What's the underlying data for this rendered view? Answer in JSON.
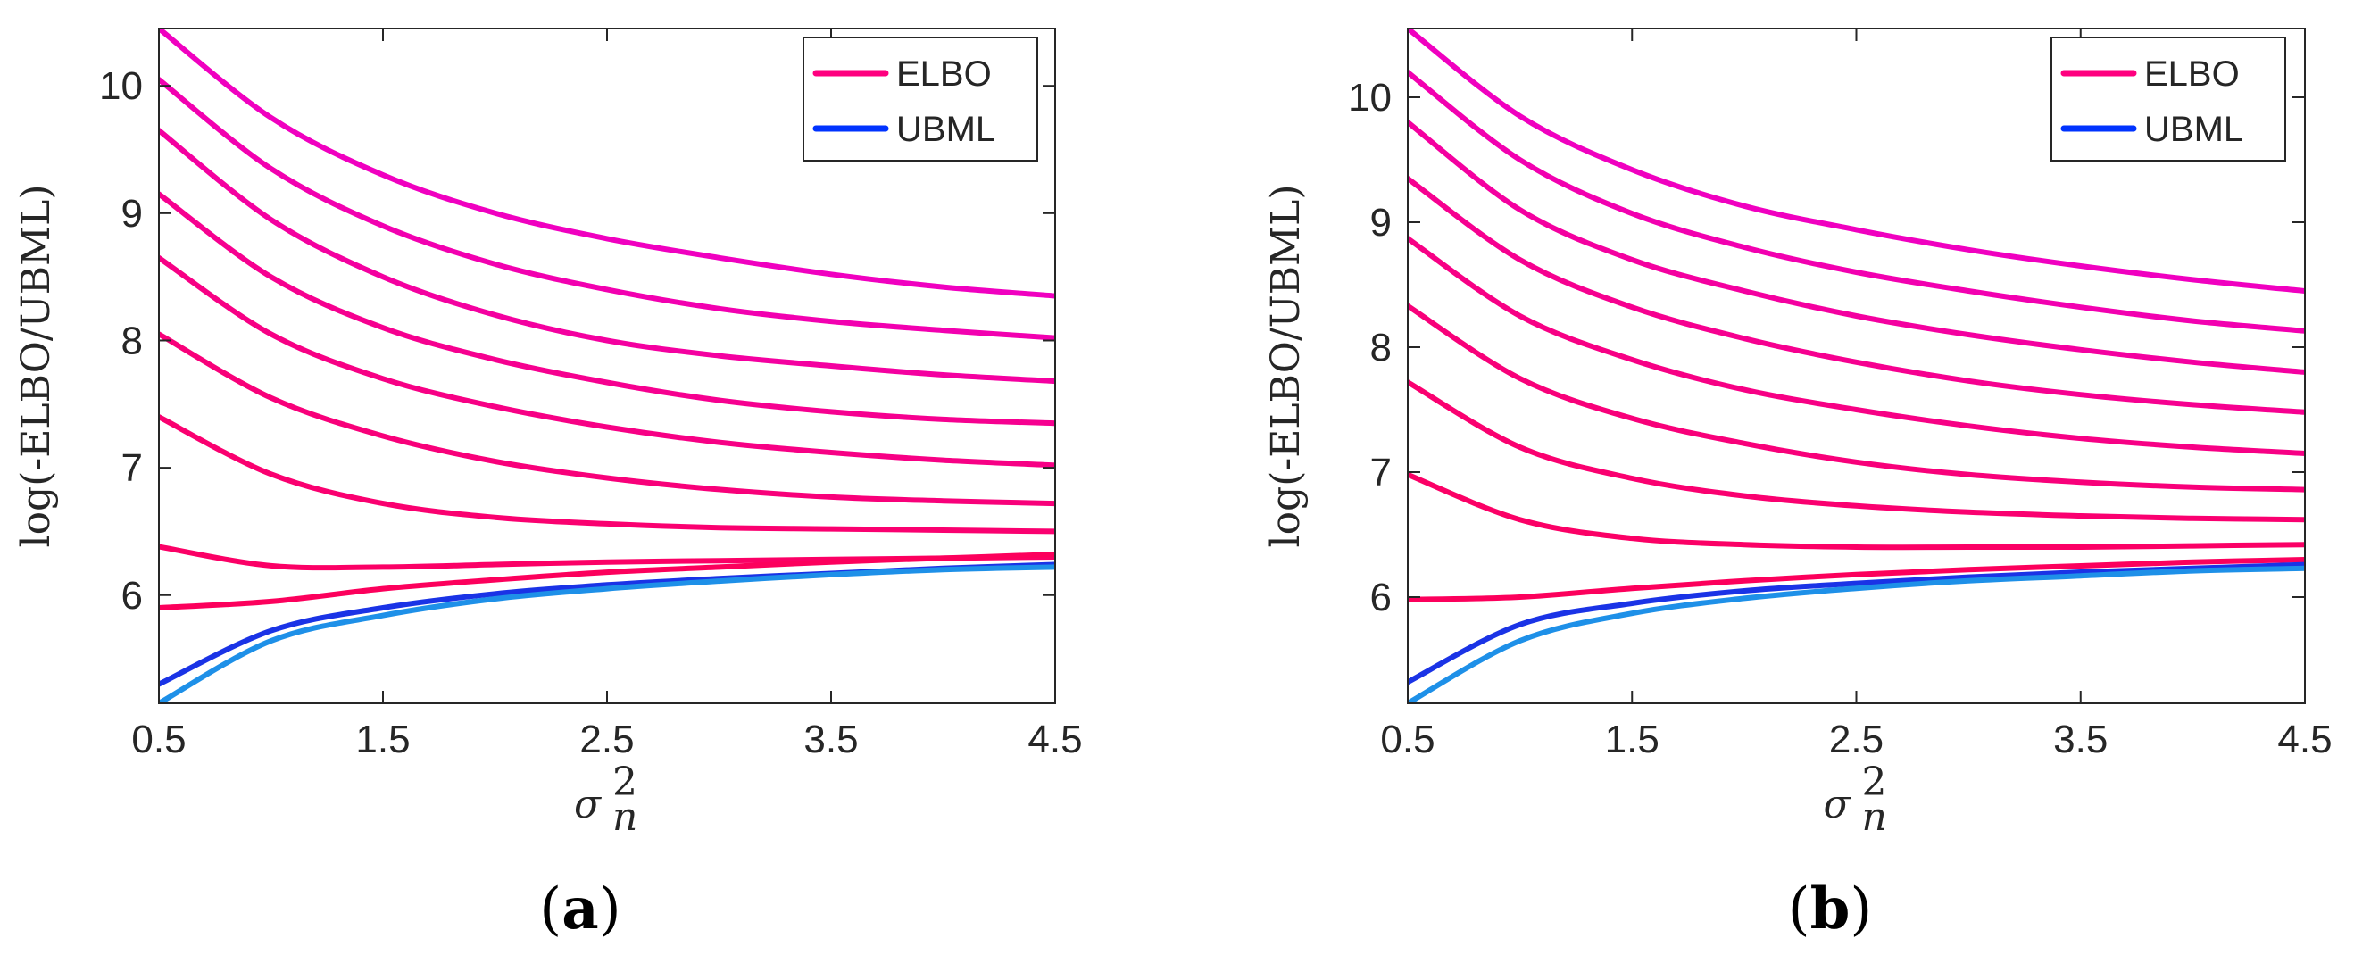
{
  "chart_data": [
    {
      "type": "line",
      "panel_label": "(a)",
      "panel_label_letter": "a",
      "xlabel_base": "σ",
      "xlabel_sup": "2",
      "xlabel_sub": "n",
      "ylabel": "log(-ELBO/UBML)",
      "xlim": [
        0.5,
        4.5
      ],
      "ylim": [
        5.15,
        10.45
      ],
      "xticks": [
        0.5,
        1.5,
        2.5,
        3.5,
        4.5
      ],
      "xtick_labels": [
        "0.5",
        "1.5",
        "2.5",
        "3.5",
        "4.5"
      ],
      "yticks": [
        6,
        7,
        8,
        9,
        10
      ],
      "ytick_labels": [
        "6",
        "7",
        "8",
        "9",
        "10"
      ],
      "legend": {
        "position": "top-right",
        "entries": [
          {
            "label": "ELBO",
            "color": "#FF007F"
          },
          {
            "label": "UBML",
            "color": "#0033FF"
          }
        ]
      },
      "x": [
        0.5,
        1.0,
        1.5,
        2.0,
        2.5,
        3.0,
        3.5,
        4.0,
        4.5
      ],
      "series": [
        {
          "name": "ELBO",
          "color": "#F000C0",
          "values": [
            10.45,
            9.75,
            9.3,
            9.0,
            8.8,
            8.65,
            8.52,
            8.42,
            8.35
          ]
        },
        {
          "name": "ELBO",
          "color": "#F200B0",
          "values": [
            10.05,
            9.35,
            8.9,
            8.6,
            8.4,
            8.25,
            8.15,
            8.08,
            8.02
          ]
        },
        {
          "name": "ELBO",
          "color": "#F400A0",
          "values": [
            9.65,
            8.95,
            8.5,
            8.2,
            8.0,
            7.88,
            7.8,
            7.73,
            7.68
          ]
        },
        {
          "name": "ELBO",
          "color": "#F60090",
          "values": [
            9.15,
            8.5,
            8.1,
            7.85,
            7.67,
            7.53,
            7.44,
            7.38,
            7.35
          ]
        },
        {
          "name": "ELBO",
          "color": "#F70085",
          "values": [
            8.65,
            8.05,
            7.7,
            7.48,
            7.32,
            7.2,
            7.12,
            7.06,
            7.02
          ]
        },
        {
          "name": "ELBO",
          "color": "#F8007A",
          "values": [
            8.05,
            7.55,
            7.25,
            7.05,
            6.92,
            6.83,
            6.77,
            6.74,
            6.72
          ]
        },
        {
          "name": "ELBO",
          "color": "#FA0070",
          "values": [
            7.4,
            6.95,
            6.72,
            6.61,
            6.56,
            6.53,
            6.52,
            6.51,
            6.5
          ]
        },
        {
          "name": "ELBO",
          "color": "#FB0066",
          "values": [
            6.38,
            6.23,
            6.22,
            6.24,
            6.26,
            6.27,
            6.28,
            6.29,
            6.3
          ]
        },
        {
          "name": "ELBO",
          "color": "#FC005C",
          "values": [
            5.9,
            5.95,
            6.05,
            6.12,
            6.18,
            6.22,
            6.26,
            6.29,
            6.32
          ]
        },
        {
          "name": "UBML",
          "color": "#1A33E6",
          "values": [
            5.3,
            5.72,
            5.9,
            6.01,
            6.08,
            6.13,
            6.17,
            6.21,
            6.24
          ]
        },
        {
          "name": "UBML",
          "color": "#1E90E8",
          "values": [
            5.15,
            5.64,
            5.84,
            5.97,
            6.05,
            6.11,
            6.16,
            6.2,
            6.22
          ]
        }
      ]
    },
    {
      "type": "line",
      "panel_label": "(b)",
      "panel_label_letter": "b",
      "xlabel_base": "σ",
      "xlabel_sup": "2",
      "xlabel_sub": "n",
      "ylabel": "log(-ELBO/UBML)",
      "xlim": [
        0.5,
        4.5
      ],
      "ylim": [
        5.15,
        10.55
      ],
      "xticks": [
        0.5,
        1.5,
        2.5,
        3.5,
        4.5
      ],
      "xtick_labels": [
        "0.5",
        "1.5",
        "2.5",
        "3.5",
        "4.5"
      ],
      "yticks": [
        6,
        7,
        8,
        9,
        10
      ],
      "ytick_labels": [
        "6",
        "7",
        "8",
        "9",
        "10"
      ],
      "legend": {
        "position": "top-right",
        "entries": [
          {
            "label": "ELBO",
            "color": "#FF007F"
          },
          {
            "label": "UBML",
            "color": "#0033FF"
          }
        ]
      },
      "x": [
        0.5,
        1.0,
        1.5,
        2.0,
        2.5,
        3.0,
        3.5,
        4.0,
        4.5
      ],
      "series": [
        {
          "name": "ELBO",
          "color": "#F000C0",
          "values": [
            10.55,
            9.85,
            9.42,
            9.13,
            8.94,
            8.78,
            8.65,
            8.54,
            8.45
          ]
        },
        {
          "name": "ELBO",
          "color": "#F200B0",
          "values": [
            10.2,
            9.5,
            9.07,
            8.8,
            8.6,
            8.45,
            8.32,
            8.21,
            8.13
          ]
        },
        {
          "name": "ELBO",
          "color": "#F400A0",
          "values": [
            9.8,
            9.1,
            8.7,
            8.45,
            8.25,
            8.1,
            7.98,
            7.88,
            7.8
          ]
        },
        {
          "name": "ELBO",
          "color": "#F60090",
          "values": [
            9.35,
            8.7,
            8.32,
            8.07,
            7.88,
            7.73,
            7.62,
            7.54,
            7.48
          ]
        },
        {
          "name": "ELBO",
          "color": "#F70085",
          "values": [
            8.87,
            8.25,
            7.9,
            7.66,
            7.5,
            7.37,
            7.27,
            7.2,
            7.15
          ]
        },
        {
          "name": "ELBO",
          "color": "#F8007A",
          "values": [
            8.33,
            7.75,
            7.43,
            7.23,
            7.08,
            6.98,
            6.92,
            6.88,
            6.86
          ]
        },
        {
          "name": "ELBO",
          "color": "#FA0070",
          "values": [
            7.72,
            7.2,
            6.95,
            6.81,
            6.73,
            6.68,
            6.65,
            6.63,
            6.62
          ]
        },
        {
          "name": "ELBO",
          "color": "#FB0066",
          "values": [
            6.98,
            6.62,
            6.47,
            6.42,
            6.4,
            6.4,
            6.4,
            6.41,
            6.42
          ]
        },
        {
          "name": "ELBO",
          "color": "#FC005C",
          "values": [
            5.98,
            6.0,
            6.07,
            6.13,
            6.18,
            6.22,
            6.25,
            6.28,
            6.3
          ]
        },
        {
          "name": "UBML",
          "color": "#1A33E6",
          "values": [
            5.32,
            5.78,
            5.95,
            6.05,
            6.11,
            6.16,
            6.2,
            6.23,
            6.26
          ]
        },
        {
          "name": "UBML",
          "color": "#1E90E8",
          "values": [
            5.15,
            5.65,
            5.87,
            5.99,
            6.07,
            6.13,
            6.17,
            6.21,
            6.23
          ]
        }
      ]
    }
  ]
}
